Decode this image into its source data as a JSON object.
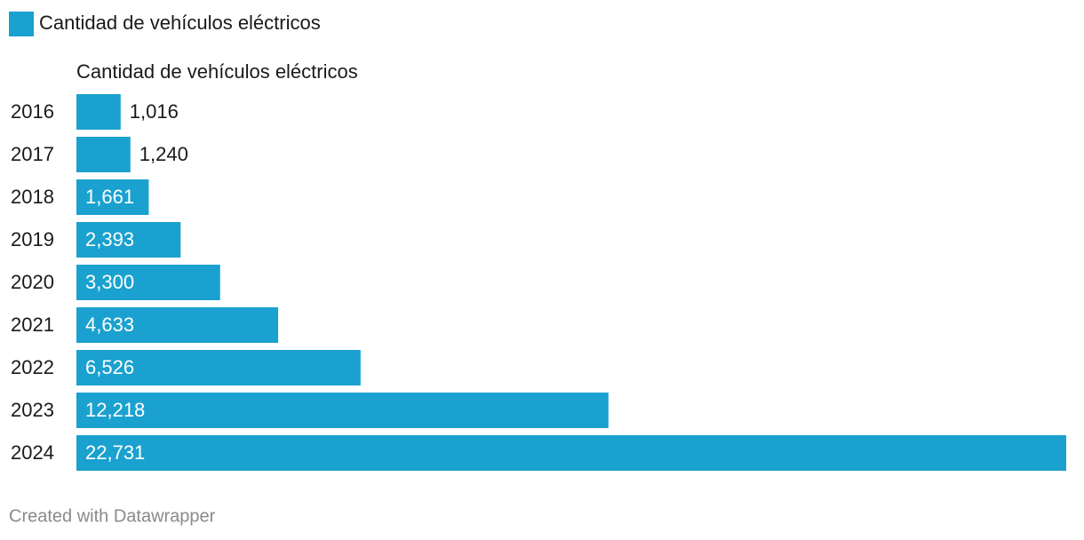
{
  "chart_data": {
    "type": "bar",
    "orientation": "horizontal",
    "categories": [
      "2016",
      "2017",
      "2018",
      "2019",
      "2020",
      "2021",
      "2022",
      "2023",
      "2024"
    ],
    "series": [
      {
        "name": "Cantidad de vehículos eléctricos",
        "color": "#1aa1cf",
        "values": [
          1016,
          1240,
          1661,
          2393,
          3300,
          4633,
          6526,
          12218,
          22731
        ],
        "value_labels": [
          "1,016",
          "1,240",
          "1,661",
          "2,393",
          "3,300",
          "4,633",
          "6,526",
          "12,218",
          "22,731"
        ]
      }
    ],
    "credit": "Created with Datawrapper"
  }
}
